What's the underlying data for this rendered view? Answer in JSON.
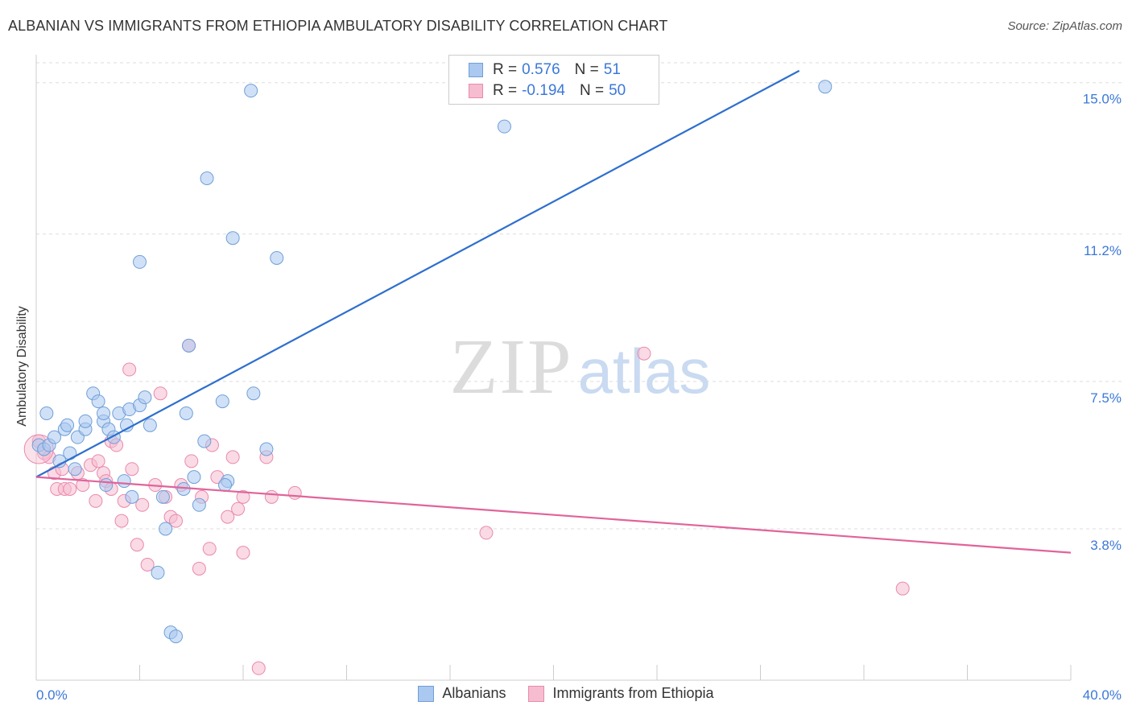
{
  "header": {
    "title": "ALBANIAN VS IMMIGRANTS FROM ETHIOPIA AMBULATORY DISABILITY CORRELATION CHART",
    "source": "Source: ZipAtlas.com"
  },
  "watermark": {
    "zip": "ZIP",
    "atlas": "atlas"
  },
  "legend": {
    "rows": [
      {
        "r_label": "R = ",
        "r_value": "0.576",
        "n_label": "N = ",
        "n_value": "51"
      },
      {
        "r_label": "R = ",
        "r_value": "-0.194",
        "n_label": "N = ",
        "n_value": "50"
      }
    ]
  },
  "colors": {
    "series1_fill": "#aac8f0",
    "series1_stroke": "#6f9fd8",
    "series1_line": "#2e6fce",
    "series2_fill": "#f6bcd0",
    "series2_stroke": "#e98aac",
    "series2_line": "#e0649a",
    "axis_text": "#3c78d8",
    "grid": "#dddddd"
  },
  "chart_data": {
    "type": "scatter",
    "title": "ALBANIAN VS IMMIGRANTS FROM ETHIOPIA AMBULATORY DISABILITY CORRELATION CHART",
    "xlabel": "",
    "ylabel": "Ambulatory Disability",
    "xlim": [
      0,
      40
    ],
    "ylim": [
      0,
      15.5
    ],
    "x_tick_labels": [
      "0.0%",
      "40.0%"
    ],
    "y_ticks": [
      3.8,
      7.5,
      11.2,
      15.0
    ],
    "y_tick_labels": [
      "3.8%",
      "7.5%",
      "11.2%",
      "15.0%"
    ],
    "grid": true,
    "legend_position": "top-center",
    "series": [
      {
        "name": "Albanians",
        "r": 0.576,
        "n": 51,
        "trend": {
          "x": [
            0,
            29.5
          ],
          "y": [
            5.1,
            15.3
          ]
        },
        "points": [
          [
            0.1,
            5.9
          ],
          [
            0.3,
            5.8
          ],
          [
            0.5,
            5.9
          ],
          [
            0.4,
            6.7
          ],
          [
            0.7,
            6.1
          ],
          [
            0.9,
            5.5
          ],
          [
            1.1,
            6.3
          ],
          [
            1.3,
            5.7
          ],
          [
            1.2,
            6.4
          ],
          [
            1.6,
            6.1
          ],
          [
            1.5,
            5.3
          ],
          [
            1.9,
            6.3
          ],
          [
            1.9,
            6.5
          ],
          [
            2.2,
            7.2
          ],
          [
            2.4,
            7.0
          ],
          [
            2.6,
            6.5
          ],
          [
            2.6,
            6.7
          ],
          [
            2.7,
            4.9
          ],
          [
            2.8,
            6.3
          ],
          [
            3.0,
            6.1
          ],
          [
            3.2,
            6.7
          ],
          [
            3.4,
            5.0
          ],
          [
            3.5,
            6.4
          ],
          [
            3.6,
            6.8
          ],
          [
            3.7,
            4.6
          ],
          [
            4.0,
            6.9
          ],
          [
            4.2,
            7.1
          ],
          [
            4.4,
            6.4
          ],
          [
            4.0,
            10.5
          ],
          [
            4.7,
            2.7
          ],
          [
            4.9,
            4.6
          ],
          [
            5.0,
            3.8
          ],
          [
            5.2,
            1.2
          ],
          [
            5.4,
            1.1
          ],
          [
            5.7,
            4.8
          ],
          [
            5.9,
            8.4
          ],
          [
            5.8,
            6.7
          ],
          [
            6.1,
            5.1
          ],
          [
            6.3,
            4.4
          ],
          [
            6.5,
            6.0
          ],
          [
            6.6,
            12.6
          ],
          [
            7.2,
            7.0
          ],
          [
            7.4,
            5.0
          ],
          [
            7.6,
            11.1
          ],
          [
            8.3,
            14.8
          ],
          [
            8.4,
            7.2
          ],
          [
            8.9,
            5.8
          ],
          [
            9.3,
            10.6
          ],
          [
            18.1,
            13.9
          ],
          [
            30.5,
            14.9
          ],
          [
            7.3,
            4.9
          ]
        ]
      },
      {
        "name": "Immigrants from Ethiopia",
        "r": -0.194,
        "n": 50,
        "trend": {
          "x": [
            0,
            40
          ],
          "y": [
            5.1,
            3.2
          ]
        },
        "points": [
          [
            0.1,
            6.0
          ],
          [
            0.3,
            5.7
          ],
          [
            0.5,
            5.6
          ],
          [
            0.7,
            5.2
          ],
          [
            0.8,
            4.8
          ],
          [
            1.0,
            5.3
          ],
          [
            1.1,
            4.8
          ],
          [
            1.3,
            4.8
          ],
          [
            1.6,
            5.2
          ],
          [
            1.8,
            4.9
          ],
          [
            2.1,
            5.4
          ],
          [
            2.3,
            4.5
          ],
          [
            2.4,
            5.5
          ],
          [
            2.6,
            5.2
          ],
          [
            2.7,
            5.0
          ],
          [
            2.9,
            6.0
          ],
          [
            2.9,
            4.8
          ],
          [
            3.1,
            5.9
          ],
          [
            3.3,
            4.0
          ],
          [
            3.4,
            4.5
          ],
          [
            3.6,
            7.8
          ],
          [
            3.7,
            5.3
          ],
          [
            3.9,
            3.4
          ],
          [
            4.1,
            4.4
          ],
          [
            4.3,
            2.9
          ],
          [
            4.6,
            4.9
          ],
          [
            4.8,
            7.2
          ],
          [
            5.0,
            4.6
          ],
          [
            5.2,
            4.1
          ],
          [
            5.4,
            4.0
          ],
          [
            5.6,
            4.9
          ],
          [
            5.9,
            8.4
          ],
          [
            6.0,
            5.5
          ],
          [
            6.3,
            2.8
          ],
          [
            6.4,
            4.6
          ],
          [
            6.7,
            3.3
          ],
          [
            6.8,
            5.9
          ],
          [
            7.0,
            5.1
          ],
          [
            7.4,
            4.1
          ],
          [
            7.6,
            5.6
          ],
          [
            7.8,
            4.3
          ],
          [
            8.0,
            3.2
          ],
          [
            8.0,
            4.6
          ],
          [
            8.6,
            0.3
          ],
          [
            8.9,
            5.6
          ],
          [
            9.1,
            4.6
          ],
          [
            10.0,
            4.7
          ],
          [
            17.4,
            3.7
          ],
          [
            23.5,
            8.2
          ],
          [
            33.5,
            2.3
          ]
        ]
      }
    ]
  },
  "bottom_legend": [
    {
      "label": "Albanians"
    },
    {
      "label": "Immigrants from Ethiopia"
    }
  ]
}
